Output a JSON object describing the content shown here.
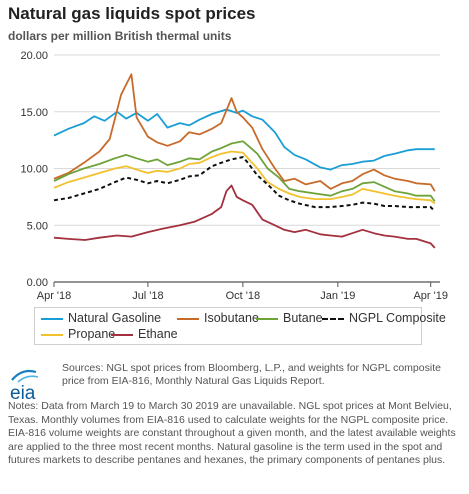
{
  "header": {
    "title": "Natural gas liquids spot prices",
    "subtitle": "dollars per million British thermal units"
  },
  "chart_data": {
    "type": "line",
    "title": "Natural gas liquids spot prices",
    "ylabel": "dollars per million British thermal units",
    "xlabel": "",
    "ylim": [
      0,
      20
    ],
    "yticks": [
      "0.00",
      "5.00",
      "10.00",
      "15.00",
      "20.00"
    ],
    "xlim": [
      "2018-04-01",
      "2019-04-10"
    ],
    "xticks": [
      {
        "label": "Apr '18",
        "date": "2018-04-01"
      },
      {
        "label": "Jul '18",
        "date": "2018-07-01"
      },
      {
        "label": "Oct '18",
        "date": "2018-10-01"
      },
      {
        "label": "Jan '19",
        "date": "2019-01-01"
      },
      {
        "label": "Apr '19",
        "date": "2019-04-01"
      }
    ],
    "grid": "horizontal",
    "legend_position": "bottom",
    "series": [
      {
        "name": "Natural Gasoline",
        "color": "#1a9ed6",
        "dash": false,
        "points": [
          [
            "2018-04-01",
            12.9
          ],
          [
            "2018-04-15",
            13.5
          ],
          [
            "2018-04-30",
            14.0
          ],
          [
            "2018-05-10",
            14.6
          ],
          [
            "2018-05-20",
            14.2
          ],
          [
            "2018-06-01",
            15.0
          ],
          [
            "2018-06-10",
            14.4
          ],
          [
            "2018-06-20",
            14.9
          ],
          [
            "2018-07-01",
            14.2
          ],
          [
            "2018-07-10",
            14.8
          ],
          [
            "2018-07-20",
            13.6
          ],
          [
            "2018-08-01",
            14.0
          ],
          [
            "2018-08-10",
            13.8
          ],
          [
            "2018-08-20",
            14.3
          ],
          [
            "2018-09-01",
            14.8
          ],
          [
            "2018-09-15",
            15.2
          ],
          [
            "2018-09-25",
            14.9
          ],
          [
            "2018-10-01",
            15.1
          ],
          [
            "2018-10-10",
            14.6
          ],
          [
            "2018-10-20",
            14.3
          ],
          [
            "2018-11-01",
            13.2
          ],
          [
            "2018-11-10",
            11.9
          ],
          [
            "2018-11-20",
            11.2
          ],
          [
            "2018-12-01",
            10.8
          ],
          [
            "2018-12-15",
            10.1
          ],
          [
            "2018-12-25",
            9.9
          ],
          [
            "2019-01-05",
            10.3
          ],
          [
            "2019-01-15",
            10.4
          ],
          [
            "2019-01-25",
            10.6
          ],
          [
            "2019-02-05",
            10.7
          ],
          [
            "2019-02-15",
            11.1
          ],
          [
            "2019-02-25",
            11.3
          ],
          [
            "2019-03-10",
            11.6
          ],
          [
            "2019-03-18",
            11.7
          ],
          [
            "2019-04-01",
            11.7
          ],
          [
            "2019-04-05",
            11.7
          ]
        ]
      },
      {
        "name": "Isobutane",
        "color": "#c86b2a",
        "dash": false,
        "points": [
          [
            "2018-04-01",
            9.1
          ],
          [
            "2018-04-15",
            9.6
          ],
          [
            "2018-04-30",
            10.5
          ],
          [
            "2018-05-15",
            11.5
          ],
          [
            "2018-05-25",
            12.6
          ],
          [
            "2018-06-05",
            16.5
          ],
          [
            "2018-06-10",
            17.4
          ],
          [
            "2018-06-15",
            18.3
          ],
          [
            "2018-06-20",
            14.5
          ],
          [
            "2018-07-01",
            12.8
          ],
          [
            "2018-07-10",
            12.3
          ],
          [
            "2018-07-20",
            12.0
          ],
          [
            "2018-08-01",
            12.4
          ],
          [
            "2018-08-10",
            13.2
          ],
          [
            "2018-08-20",
            13.0
          ],
          [
            "2018-09-01",
            13.5
          ],
          [
            "2018-09-10",
            14.0
          ],
          [
            "2018-09-20",
            16.2
          ],
          [
            "2018-09-25",
            15.0
          ],
          [
            "2018-10-01",
            14.5
          ],
          [
            "2018-10-10",
            13.6
          ],
          [
            "2018-10-20",
            11.7
          ],
          [
            "2018-11-01",
            10.0
          ],
          [
            "2018-11-10",
            8.9
          ],
          [
            "2018-11-20",
            9.1
          ],
          [
            "2018-12-01",
            8.6
          ],
          [
            "2018-12-15",
            8.9
          ],
          [
            "2018-12-25",
            8.2
          ],
          [
            "2019-01-05",
            8.7
          ],
          [
            "2019-01-15",
            8.9
          ],
          [
            "2019-01-25",
            9.5
          ],
          [
            "2019-02-05",
            9.9
          ],
          [
            "2019-02-15",
            9.4
          ],
          [
            "2019-02-25",
            9.1
          ],
          [
            "2019-03-10",
            8.9
          ],
          [
            "2019-03-18",
            8.7
          ],
          [
            "2019-04-01",
            8.6
          ],
          [
            "2019-04-05",
            8.0
          ]
        ]
      },
      {
        "name": "Butane",
        "color": "#6ea33a",
        "dash": false,
        "points": [
          [
            "2018-04-01",
            8.9
          ],
          [
            "2018-04-15",
            9.5
          ],
          [
            "2018-04-30",
            10.0
          ],
          [
            "2018-05-15",
            10.4
          ],
          [
            "2018-05-30",
            10.9
          ],
          [
            "2018-06-10",
            11.2
          ],
          [
            "2018-06-20",
            10.9
          ],
          [
            "2018-07-01",
            10.6
          ],
          [
            "2018-07-10",
            10.8
          ],
          [
            "2018-07-20",
            10.3
          ],
          [
            "2018-08-01",
            10.6
          ],
          [
            "2018-08-10",
            10.9
          ],
          [
            "2018-08-20",
            10.8
          ],
          [
            "2018-09-01",
            11.5
          ],
          [
            "2018-09-10",
            11.8
          ],
          [
            "2018-09-20",
            12.2
          ],
          [
            "2018-10-01",
            12.4
          ],
          [
            "2018-10-05",
            12.1
          ],
          [
            "2018-10-15",
            11.3
          ],
          [
            "2018-10-25",
            10.0
          ],
          [
            "2018-11-05",
            9.2
          ],
          [
            "2018-11-15",
            8.2
          ],
          [
            "2018-11-25",
            8.0
          ],
          [
            "2018-12-10",
            7.8
          ],
          [
            "2018-12-25",
            7.6
          ],
          [
            "2019-01-05",
            8.0
          ],
          [
            "2019-01-15",
            8.2
          ],
          [
            "2019-01-25",
            8.7
          ],
          [
            "2019-02-05",
            8.8
          ],
          [
            "2019-02-15",
            8.4
          ],
          [
            "2019-02-25",
            8.0
          ],
          [
            "2019-03-10",
            7.8
          ],
          [
            "2019-03-18",
            7.6
          ],
          [
            "2019-04-01",
            7.6
          ],
          [
            "2019-04-05",
            7.1
          ]
        ]
      },
      {
        "name": "NGPL Composite",
        "color": "#111111",
        "dash": true,
        "points": [
          [
            "2018-04-01",
            7.2
          ],
          [
            "2018-04-15",
            7.4
          ],
          [
            "2018-04-30",
            7.8
          ],
          [
            "2018-05-15",
            8.2
          ],
          [
            "2018-05-30",
            8.8
          ],
          [
            "2018-06-10",
            9.2
          ],
          [
            "2018-06-20",
            9.0
          ],
          [
            "2018-07-01",
            8.7
          ],
          [
            "2018-07-10",
            8.9
          ],
          [
            "2018-07-20",
            8.7
          ],
          [
            "2018-08-01",
            9.0
          ],
          [
            "2018-08-10",
            9.3
          ],
          [
            "2018-08-20",
            9.4
          ],
          [
            "2018-09-01",
            10.2
          ],
          [
            "2018-09-10",
            10.5
          ],
          [
            "2018-09-20",
            10.8
          ],
          [
            "2018-10-01",
            11.0
          ],
          [
            "2018-10-05",
            10.6
          ],
          [
            "2018-10-15",
            9.4
          ],
          [
            "2018-10-25",
            8.6
          ],
          [
            "2018-11-05",
            7.6
          ],
          [
            "2018-11-15",
            7.2
          ],
          [
            "2018-11-25",
            6.9
          ],
          [
            "2018-12-10",
            6.6
          ],
          [
            "2018-12-25",
            6.6
          ],
          [
            "2019-01-05",
            6.7
          ],
          [
            "2019-01-15",
            6.8
          ],
          [
            "2019-01-25",
            7.0
          ],
          [
            "2019-02-05",
            6.9
          ],
          [
            "2019-02-15",
            6.7
          ],
          [
            "2019-02-25",
            6.7
          ],
          [
            "2019-03-10",
            6.6
          ],
          [
            "2019-03-18",
            6.6
          ],
          [
            "2019-04-01",
            6.6
          ],
          [
            "2019-04-05",
            6.2
          ]
        ]
      },
      {
        "name": "Propane",
        "color": "#f2c12e",
        "dash": false,
        "points": [
          [
            "2018-04-01",
            8.3
          ],
          [
            "2018-04-15",
            8.8
          ],
          [
            "2018-04-30",
            9.2
          ],
          [
            "2018-05-15",
            9.6
          ],
          [
            "2018-05-30",
            10.0
          ],
          [
            "2018-06-10",
            10.2
          ],
          [
            "2018-06-20",
            9.9
          ],
          [
            "2018-07-01",
            9.6
          ],
          [
            "2018-07-10",
            9.8
          ],
          [
            "2018-07-20",
            9.7
          ],
          [
            "2018-08-01",
            10.0
          ],
          [
            "2018-08-10",
            10.4
          ],
          [
            "2018-08-20",
            10.5
          ],
          [
            "2018-09-01",
            11.0
          ],
          [
            "2018-09-10",
            11.3
          ],
          [
            "2018-09-20",
            11.5
          ],
          [
            "2018-10-01",
            11.4
          ],
          [
            "2018-10-05",
            11.0
          ],
          [
            "2018-10-15",
            10.0
          ],
          [
            "2018-10-25",
            8.8
          ],
          [
            "2018-11-05",
            8.2
          ],
          [
            "2018-11-15",
            7.8
          ],
          [
            "2018-11-25",
            7.5
          ],
          [
            "2018-12-10",
            7.3
          ],
          [
            "2018-12-25",
            7.3
          ],
          [
            "2019-01-05",
            7.5
          ],
          [
            "2019-01-15",
            7.7
          ],
          [
            "2019-01-25",
            8.2
          ],
          [
            "2019-02-05",
            8.0
          ],
          [
            "2019-02-15",
            7.8
          ],
          [
            "2019-02-25",
            7.6
          ],
          [
            "2019-03-10",
            7.4
          ],
          [
            "2019-03-18",
            7.3
          ],
          [
            "2019-04-01",
            7.2
          ],
          [
            "2019-04-05",
            6.9
          ]
        ]
      },
      {
        "name": "Ethane",
        "color": "#a3303e",
        "dash": false,
        "points": [
          [
            "2018-04-01",
            3.9
          ],
          [
            "2018-04-15",
            3.8
          ],
          [
            "2018-05-01",
            3.7
          ],
          [
            "2018-05-15",
            3.9
          ],
          [
            "2018-06-01",
            4.1
          ],
          [
            "2018-06-15",
            4.0
          ],
          [
            "2018-07-01",
            4.4
          ],
          [
            "2018-07-15",
            4.7
          ],
          [
            "2018-08-01",
            5.0
          ],
          [
            "2018-08-15",
            5.3
          ],
          [
            "2018-09-01",
            6.0
          ],
          [
            "2018-09-10",
            6.6
          ],
          [
            "2018-09-15",
            8.0
          ],
          [
            "2018-09-20",
            8.5
          ],
          [
            "2018-09-25",
            7.5
          ],
          [
            "2018-10-01",
            7.2
          ],
          [
            "2018-10-10",
            6.8
          ],
          [
            "2018-10-20",
            5.5
          ],
          [
            "2018-11-01",
            5.0
          ],
          [
            "2018-11-10",
            4.6
          ],
          [
            "2018-11-20",
            4.4
          ],
          [
            "2018-12-01",
            4.6
          ],
          [
            "2018-12-15",
            4.2
          ],
          [
            "2018-12-25",
            4.1
          ],
          [
            "2019-01-05",
            4.0
          ],
          [
            "2019-01-15",
            4.3
          ],
          [
            "2019-01-25",
            4.6
          ],
          [
            "2019-02-05",
            4.3
          ],
          [
            "2019-02-15",
            4.1
          ],
          [
            "2019-02-25",
            4.0
          ],
          [
            "2019-03-10",
            3.8
          ],
          [
            "2019-03-18",
            3.8
          ],
          [
            "2019-04-01",
            3.4
          ],
          [
            "2019-04-05",
            3.0
          ]
        ]
      }
    ]
  },
  "legend": {
    "items": [
      {
        "label": "Natural Gasoline",
        "color": "#1a9ed6",
        "dash": false
      },
      {
        "label": "Isobutane",
        "color": "#c86b2a",
        "dash": false
      },
      {
        "label": "Butane",
        "color": "#6ea33a",
        "dash": false
      },
      {
        "label": "NGPL Composite",
        "color": "#111111",
        "dash": true
      },
      {
        "label": "Propane",
        "color": "#f2c12e",
        "dash": false
      },
      {
        "label": "Ethane",
        "color": "#a3303e",
        "dash": false
      }
    ]
  },
  "footer": {
    "logo_text": "eia",
    "sources": "Sources: NGL spot prices from Bloomberg, L.P., and weights for NGPL composite price from EIA-816, Monthly Natural Gas Liquids Report.",
    "notes": "Notes: Data from March 19 to March 30 2019 are unavailable. NGL spot prices at Mont Belvieu, Texas. Monthly volumes from EIA-816 used to calculate weights for the NGPL composite price. EIA-816 volume weights are constant throughout a given month, and the latest available weights are applied to the three most recent months. Natural gasoline is the term used in the spot and futures markets to describe pentanes and hexanes, the primary components of pentanes plus."
  }
}
